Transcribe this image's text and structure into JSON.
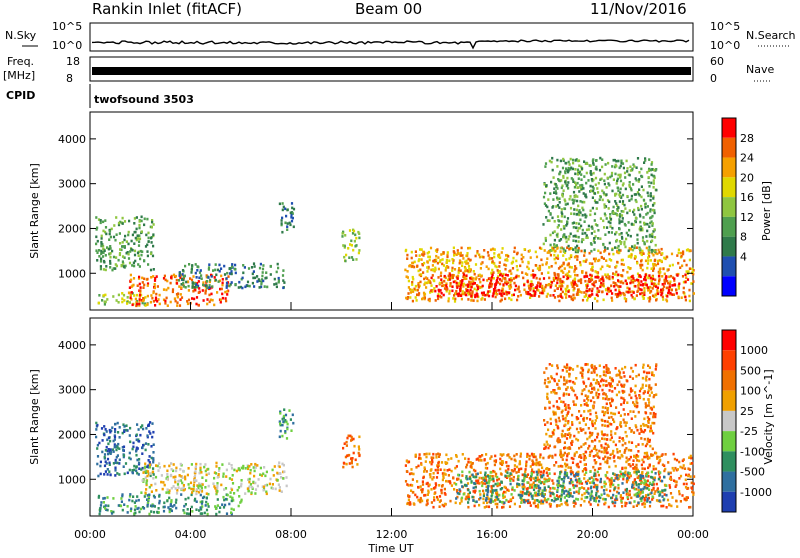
{
  "header": {
    "station": "Rankin Inlet (fitACF)",
    "beam": "Beam 00",
    "date": "11/Nov/2016"
  },
  "strip_panels": {
    "nsky": {
      "label": "N.Sky",
      "ticks": [
        "10^5",
        "10^0"
      ]
    },
    "nsearch": {
      "label": "N.Search",
      "ticks": [
        "10^5",
        "10^0"
      ]
    },
    "freq": {
      "label_line1": "Freq.",
      "label_line2": "[MHz]",
      "ticks": [
        "18",
        "8"
      ]
    },
    "nave": {
      "label": "Nave",
      "ticks": [
        "60",
        "0"
      ]
    },
    "cpid": {
      "label": "CPID",
      "value": "twofsound 3503"
    }
  },
  "chart_data": [
    {
      "type": "heatmap",
      "name": "power",
      "ylabel": "Slant Range [km]",
      "xlabel": "",
      "x_ticks": [
        "00:00",
        "04:00",
        "08:00",
        "12:00",
        "16:00",
        "20:00",
        "00:00"
      ],
      "y_ticks": [
        "1000",
        "2000",
        "3000",
        "4000"
      ],
      "ylim": [
        180,
        4600
      ],
      "xlim_hours": [
        0,
        24
      ],
      "colorbar": {
        "label": "Power [dB]",
        "ticks": [
          "28",
          "24",
          "20",
          "16",
          "12",
          "8",
          "4"
        ],
        "colors": [
          "#0000ff",
          "#1f4fb0",
          "#2f7a4a",
          "#4f9f4f",
          "#8fc640",
          "#e0d800",
          "#f5a000",
          "#f06000",
          "#ff0000"
        ]
      },
      "regions": [
        {
          "t0": 0.2,
          "t1": 2.5,
          "r0": 1100,
          "r1": 2300,
          "level": 3
        },
        {
          "t0": 0.3,
          "t1": 2.3,
          "r0": 300,
          "r1": 600,
          "level": 4
        },
        {
          "t0": 1.5,
          "t1": 5.5,
          "r0": 300,
          "r1": 1000,
          "level": 7
        },
        {
          "t0": 3.5,
          "t1": 7.7,
          "r0": 700,
          "r1": 1250,
          "level": 2
        },
        {
          "t0": 7.5,
          "t1": 8.1,
          "r0": 1900,
          "r1": 2600,
          "level": 2
        },
        {
          "t0": 10.0,
          "t1": 10.7,
          "r0": 1300,
          "r1": 2000,
          "level": 4
        },
        {
          "t0": 12.5,
          "t1": 24.0,
          "r0": 400,
          "r1": 1600,
          "level": 6
        },
        {
          "t0": 13.5,
          "t1": 23.8,
          "r0": 500,
          "r1": 1000,
          "level": 8
        },
        {
          "t0": 18.0,
          "t1": 22.5,
          "r0": 1500,
          "r1": 3600,
          "level": 3
        }
      ]
    },
    {
      "type": "heatmap",
      "name": "velocity",
      "ylabel": "Slant Range [km]",
      "xlabel": "Time UT",
      "x_ticks": [
        "00:00",
        "04:00",
        "08:00",
        "12:00",
        "16:00",
        "20:00",
        "00:00"
      ],
      "y_ticks": [
        "1000",
        "2000",
        "3000",
        "4000"
      ],
      "ylim": [
        180,
        4600
      ],
      "xlim_hours": [
        0,
        24
      ],
      "colorbar": {
        "label": "Velocity [m s^-1]",
        "ticks": [
          "1000",
          "500",
          "100",
          "25",
          "-25",
          "-100",
          "-500",
          "-1000"
        ],
        "colors": [
          "#1f3fb0",
          "#2f6f9f",
          "#2f8f5f",
          "#6fcf40",
          "#c8c8c8",
          "#f0a000",
          "#f07000",
          "#ff4000",
          "#ff0000"
        ]
      },
      "regions": [
        {
          "t0": 0.2,
          "t1": 2.5,
          "r0": 1100,
          "r1": 2300,
          "level": 1
        },
        {
          "t0": 0.3,
          "t1": 6.0,
          "r0": 250,
          "r1": 700,
          "level": 2
        },
        {
          "t0": 2.0,
          "t1": 7.8,
          "r0": 700,
          "r1": 1400,
          "level": 4
        },
        {
          "t0": 7.5,
          "t1": 8.1,
          "r0": 1900,
          "r1": 2600,
          "level": 2
        },
        {
          "t0": 10.0,
          "t1": 10.7,
          "r0": 1300,
          "r1": 2000,
          "level": 6
        },
        {
          "t0": 12.5,
          "t1": 24.0,
          "r0": 400,
          "r1": 1600,
          "level": 6
        },
        {
          "t0": 14.5,
          "t1": 23.0,
          "r0": 500,
          "r1": 1200,
          "level": 2
        },
        {
          "t0": 18.0,
          "t1": 22.5,
          "r0": 1500,
          "r1": 3600,
          "level": 6
        }
      ]
    }
  ]
}
